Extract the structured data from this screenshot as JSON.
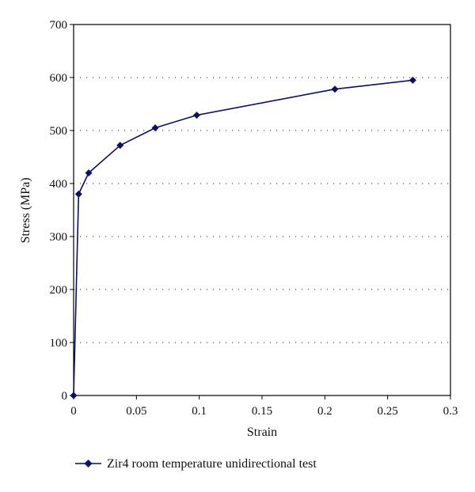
{
  "chart_data": {
    "type": "line",
    "title": "",
    "xlabel": "Strain",
    "ylabel": "Stress (MPa)",
    "xlim": [
      0,
      0.3
    ],
    "ylim": [
      0,
      700
    ],
    "x_ticks": [
      0,
      0.05,
      0.1,
      0.15,
      0.2,
      0.25,
      0.3
    ],
    "x_tick_labels": [
      "0",
      "0.05",
      "0.1",
      "0.15",
      "0.2",
      "0.25",
      "0.3"
    ],
    "y_ticks": [
      0,
      100,
      200,
      300,
      400,
      500,
      600,
      700
    ],
    "y_tick_labels": [
      "0",
      "100",
      "200",
      "300",
      "400",
      "500",
      "600",
      "700"
    ],
    "grid": "horizontal dotted",
    "legend_position": "bottom",
    "series": [
      {
        "name": "Zir4 room temperature unidirectional test",
        "color": "#0d0d6b",
        "marker": "diamond",
        "x": [
          0,
          0.004,
          0.012,
          0.037,
          0.065,
          0.098,
          0.208,
          0.27
        ],
        "y": [
          0,
          380,
          420,
          472,
          505,
          529,
          578,
          595
        ]
      }
    ]
  }
}
